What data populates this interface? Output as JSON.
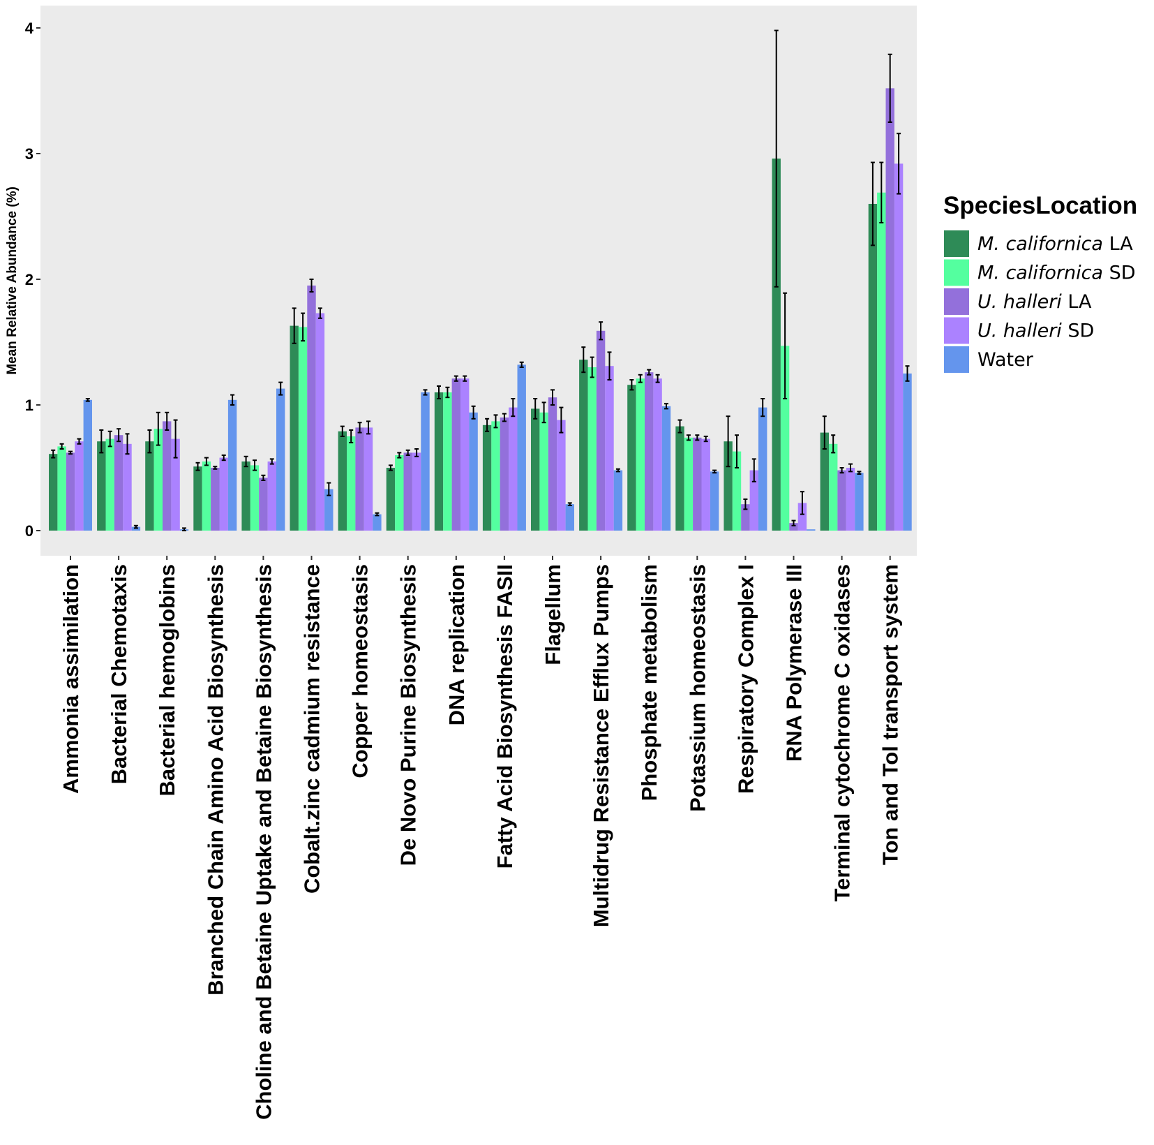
{
  "chart_data": {
    "type": "bar",
    "ylabel": "Mean Relative Abundance (%)",
    "xlabel": "",
    "ylim": [
      -0.2,
      4.2
    ],
    "y_ticks": [
      0,
      1,
      2,
      3,
      4
    ],
    "grid": false,
    "legend_position": "right",
    "legend_title": "SpeciesLocation",
    "categories": [
      "Ammonia assimilation",
      "Bacterial Chemotaxis",
      "Bacterial hemoglobins",
      "Branched Chain Amino Acid Biosynthesis",
      "Choline and Betaine Uptake and Betaine Biosynthesis",
      "Cobalt.zinc cadmium resistance",
      "Copper homeostasis",
      "De Novo Purine Biosynthesis",
      "DNA replication",
      "Fatty Acid Biosynthesis FASII",
      "Flagellum",
      "Multidrug Resistance Efflux Pumps",
      "Phosphate metabolism",
      "Potassium homeostasis",
      "Respiratory Complex I",
      "RNA Polymerase III",
      "Terminal cytochrome C oxidases",
      "Ton and Tol transport system"
    ],
    "series": [
      {
        "name": "M. californica LA",
        "species": "M. californica",
        "location": "LA",
        "color": "#2e8b57",
        "values": [
          0.61,
          0.71,
          0.71,
          0.51,
          0.55,
          1.63,
          0.79,
          0.5,
          1.1,
          0.84,
          0.97,
          1.36,
          1.16,
          0.83,
          0.71,
          2.96,
          0.78,
          2.6
        ],
        "errors": [
          0.03,
          0.09,
          0.09,
          0.03,
          0.04,
          0.14,
          0.04,
          0.02,
          0.05,
          0.05,
          0.08,
          0.1,
          0.04,
          0.05,
          0.2,
          1.02,
          0.13,
          0.33
        ]
      },
      {
        "name": "M. californica SD",
        "species": "M. californica",
        "location": "SD",
        "color": "#54ff9f",
        "values": [
          0.67,
          0.73,
          0.81,
          0.55,
          0.52,
          1.62,
          0.75,
          0.6,
          1.1,
          0.87,
          0.94,
          1.3,
          1.21,
          0.74,
          0.63,
          1.47,
          0.69,
          2.69
        ],
        "errors": [
          0.02,
          0.06,
          0.13,
          0.03,
          0.04,
          0.11,
          0.05,
          0.02,
          0.04,
          0.05,
          0.08,
          0.08,
          0.03,
          0.02,
          0.13,
          0.42,
          0.07,
          0.24
        ]
      },
      {
        "name": "U. halleri LA",
        "species": "U. halleri",
        "location": "LA",
        "color": "#9370db",
        "values": [
          0.62,
          0.76,
          0.87,
          0.5,
          0.42,
          1.95,
          0.82,
          0.62,
          1.21,
          0.9,
          1.06,
          1.59,
          1.26,
          0.74,
          0.21,
          0.06,
          0.48,
          3.52
        ],
        "errors": [
          0.01,
          0.05,
          0.07,
          0.01,
          0.02,
          0.05,
          0.04,
          0.02,
          0.02,
          0.03,
          0.06,
          0.07,
          0.02,
          0.02,
          0.04,
          0.02,
          0.02,
          0.27
        ]
      },
      {
        "name": "U. halleri SD",
        "species": "U. halleri",
        "location": "SD",
        "color": "#ab82ff",
        "values": [
          0.71,
          0.69,
          0.73,
          0.58,
          0.55,
          1.73,
          0.82,
          0.62,
          1.21,
          0.98,
          0.88,
          1.31,
          1.21,
          0.73,
          0.48,
          0.22,
          0.5,
          2.92
        ],
        "errors": [
          0.02,
          0.08,
          0.15,
          0.02,
          0.02,
          0.04,
          0.05,
          0.03,
          0.02,
          0.07,
          0.1,
          0.11,
          0.03,
          0.02,
          0.09,
          0.09,
          0.03,
          0.24
        ]
      },
      {
        "name": "Water",
        "species": "Water",
        "location": "",
        "color": "#6495ed",
        "values": [
          1.04,
          0.03,
          0.01,
          1.04,
          1.13,
          0.33,
          0.13,
          1.1,
          0.94,
          1.32,
          0.21,
          0.48,
          0.99,
          0.47,
          0.98,
          0.01,
          0.46,
          1.25
        ],
        "errors": [
          0.01,
          0.01,
          0.01,
          0.04,
          0.05,
          0.05,
          0.01,
          0.02,
          0.05,
          0.02,
          0.01,
          0.01,
          0.02,
          0.01,
          0.07,
          0.0,
          0.01,
          0.06
        ]
      }
    ]
  },
  "colors": {
    "panel_background": "#ebebeb",
    "error_bar": "#000000"
  }
}
